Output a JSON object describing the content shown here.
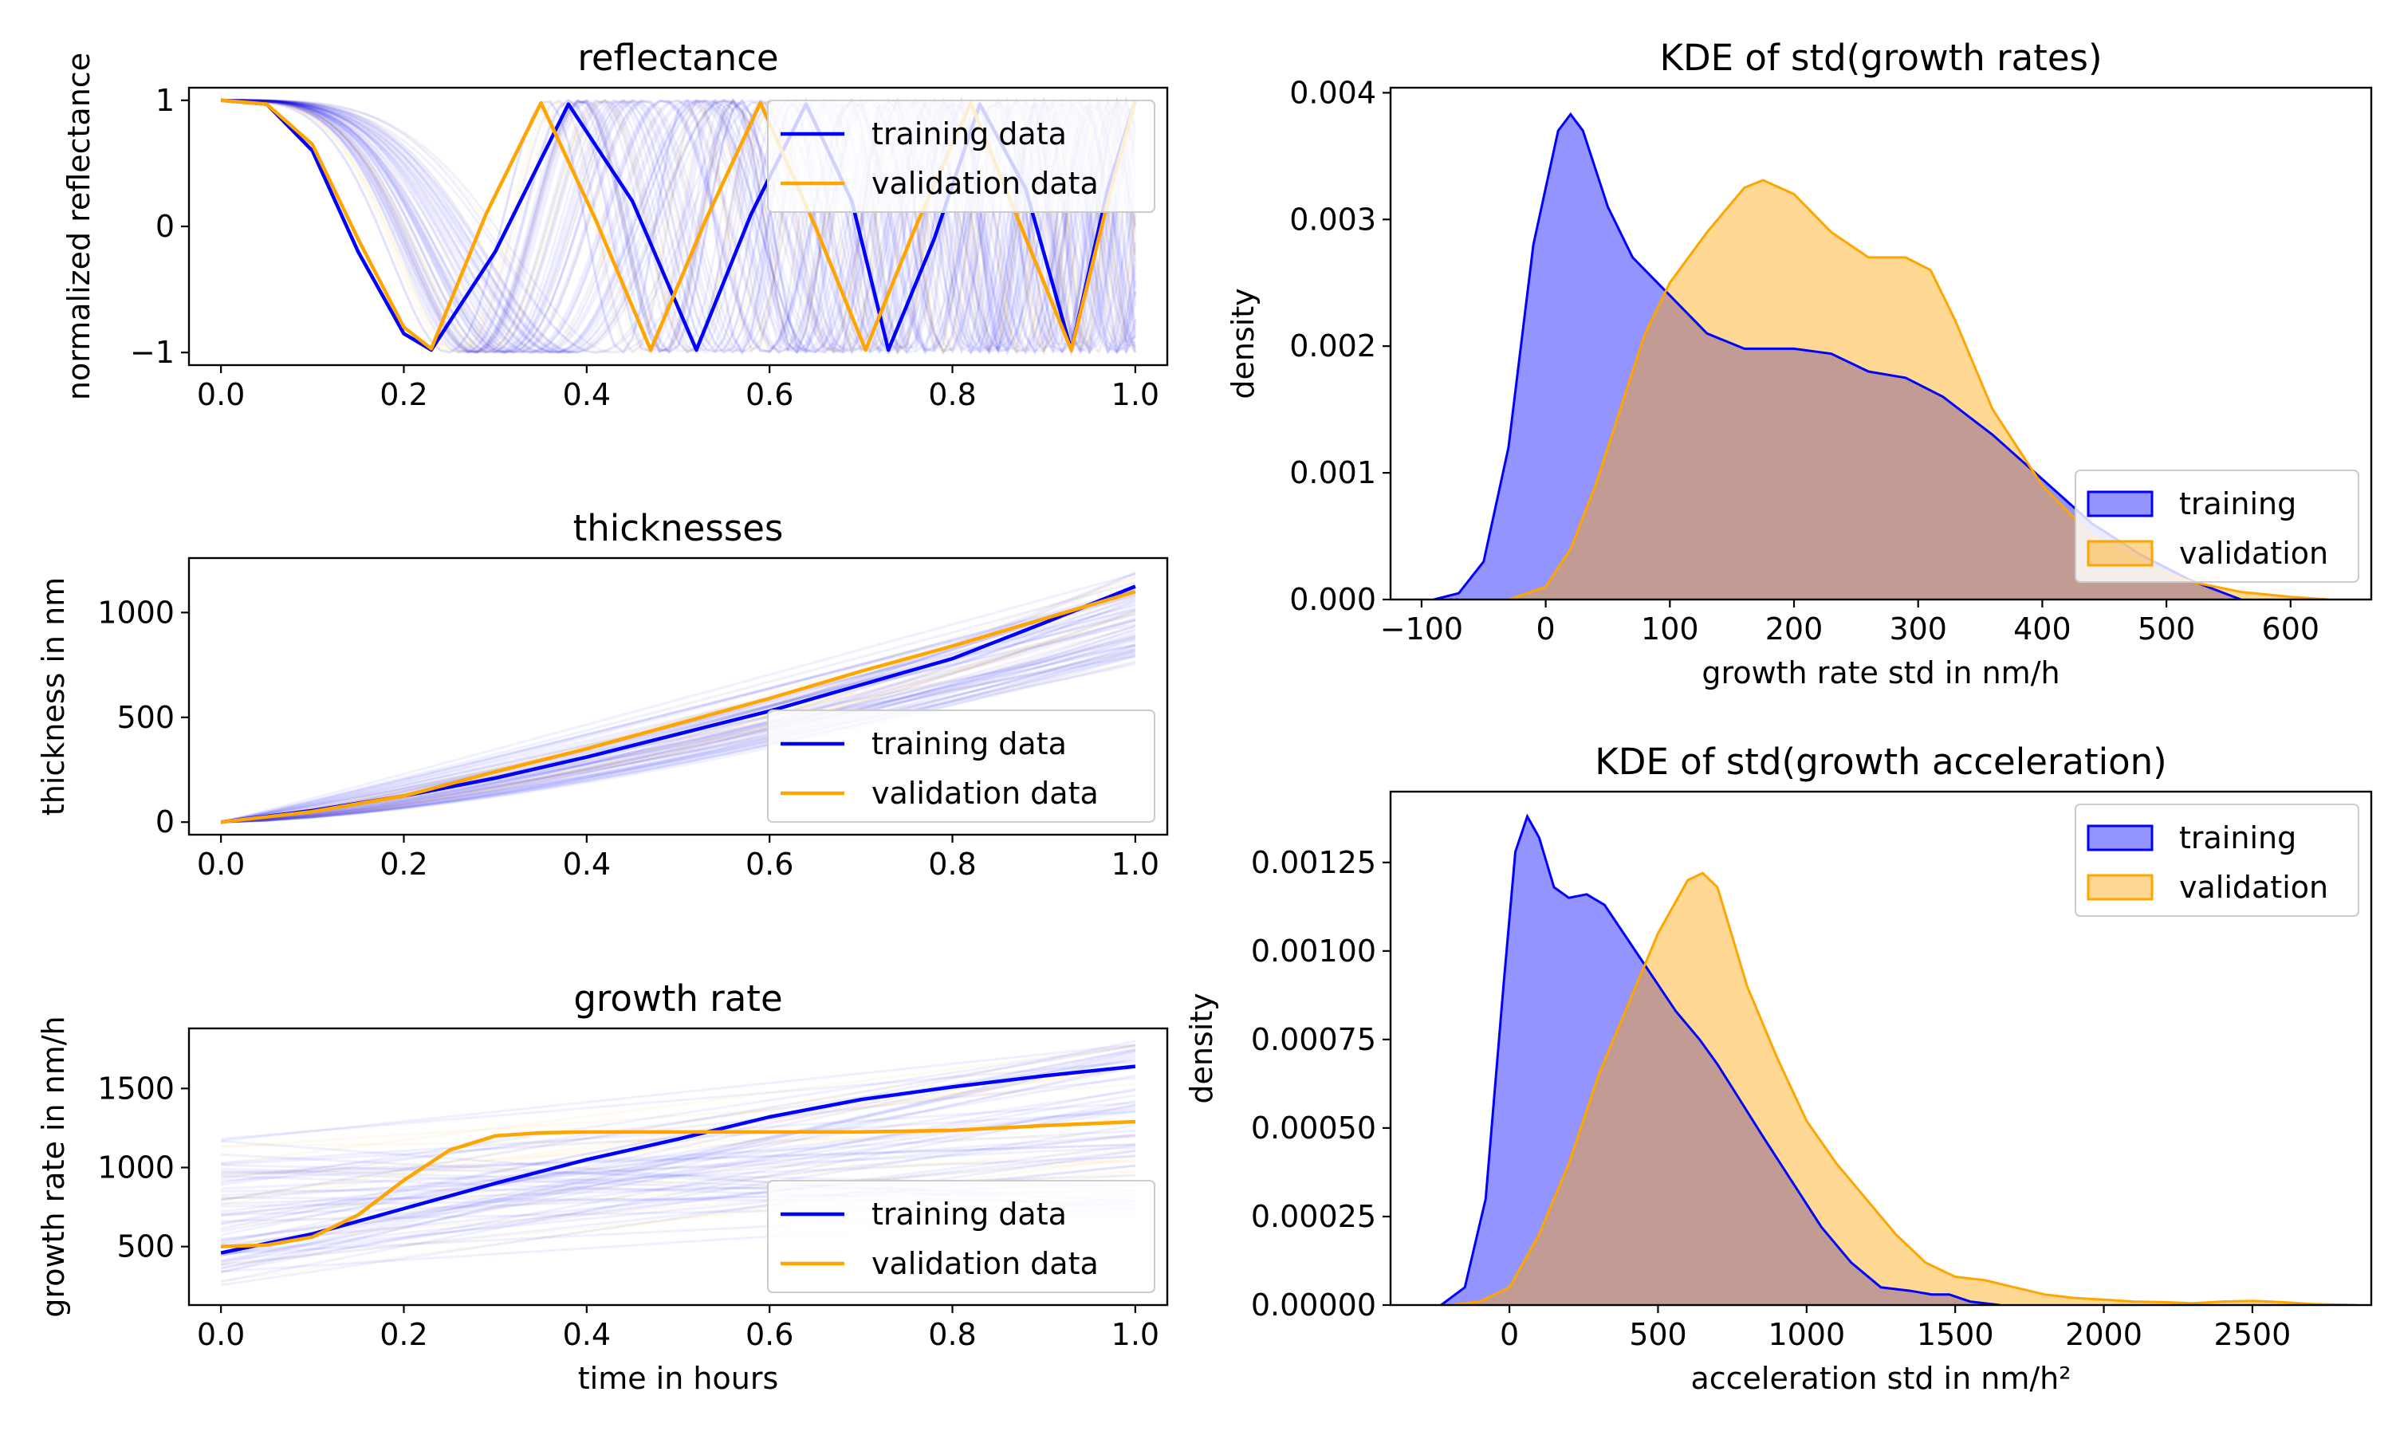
{
  "colors": {
    "training": "#0000ff",
    "validation": "#ffa500",
    "overlap": "#b99c9a"
  },
  "chart_data": [
    {
      "id": "reflectance",
      "type": "line",
      "title": "reflectance",
      "xlabel": "",
      "ylabel": "normalized reflectance",
      "xlim": [
        -0.035,
        1.035
      ],
      "ylim": [
        -1.1,
        1.1
      ],
      "xticks": [
        0.0,
        0.2,
        0.4,
        0.6,
        0.8,
        1.0
      ],
      "xtick_labels": [
        "0.0",
        "0.2",
        "0.4",
        "0.6",
        "0.8",
        "1.0"
      ],
      "yticks": [
        -1,
        0,
        1
      ],
      "ytick_labels": [
        "−1",
        "0",
        "1"
      ],
      "legend": {
        "position": "top-right",
        "entries": [
          "training data",
          "validation data"
        ]
      },
      "series": [
        {
          "name": "training data",
          "x": [
            0,
            0.05,
            0.1,
            0.15,
            0.2,
            0.23,
            0.3,
            0.38,
            0.45,
            0.52,
            0.58,
            0.64,
            0.69,
            0.73,
            0.78,
            0.83,
            0.88,
            0.93,
            0.97,
            1.0
          ],
          "y": [
            1,
            0.97,
            0.6,
            -0.2,
            -0.85,
            -0.98,
            -0.2,
            0.97,
            0.2,
            -0.98,
            0.1,
            0.97,
            0.2,
            -0.98,
            -0.1,
            0.97,
            0.3,
            -0.98,
            0.3,
            1.0
          ]
        },
        {
          "name": "validation data",
          "x": [
            0,
            0.05,
            0.1,
            0.15,
            0.2,
            0.23,
            0.29,
            0.35,
            0.41,
            0.47,
            0.53,
            0.59,
            0.65,
            0.705,
            0.76,
            0.82,
            0.875,
            0.93,
            0.97,
            1.0
          ],
          "y": [
            1,
            0.97,
            0.65,
            -0.1,
            -0.8,
            -0.97,
            0.1,
            0.98,
            0.05,
            -0.98,
            0.05,
            0.98,
            0.0,
            -0.98,
            0.0,
            0.98,
            0.0,
            -0.98,
            0.2,
            1.0
          ]
        }
      ]
    },
    {
      "id": "thicknesses",
      "type": "line",
      "title": "thicknesses",
      "xlabel": "",
      "ylabel": "thickness in nm",
      "xlim": [
        -0.035,
        1.035
      ],
      "ylim": [
        -60,
        1260
      ],
      "xticks": [
        0.0,
        0.2,
        0.4,
        0.6,
        0.8,
        1.0
      ],
      "xtick_labels": [
        "0.0",
        "0.2",
        "0.4",
        "0.6",
        "0.8",
        "1.0"
      ],
      "yticks": [
        0,
        500,
        1000
      ],
      "ytick_labels": [
        "0",
        "500",
        "1000"
      ],
      "legend": {
        "position": "lower-right",
        "entries": [
          "training data",
          "validation data"
        ]
      },
      "series": [
        {
          "name": "training data",
          "x": [
            0,
            0.1,
            0.2,
            0.3,
            0.4,
            0.5,
            0.6,
            0.7,
            0.8,
            0.9,
            1.0
          ],
          "y": [
            0,
            55,
            125,
            210,
            310,
            420,
            530,
            655,
            780,
            950,
            1125
          ]
        },
        {
          "name": "validation data",
          "x": [
            0,
            0.1,
            0.2,
            0.3,
            0.4,
            0.5,
            0.6,
            0.7,
            0.8,
            0.9,
            1.0
          ],
          "y": [
            0,
            50,
            125,
            240,
            350,
            470,
            590,
            720,
            840,
            970,
            1100
          ]
        }
      ]
    },
    {
      "id": "growth-rate",
      "type": "line",
      "title": "growth rate",
      "xlabel": "time in hours",
      "ylabel": "growth rate in nm/h",
      "xlim": [
        -0.035,
        1.035
      ],
      "ylim": [
        130,
        1880
      ],
      "xticks": [
        0.0,
        0.2,
        0.4,
        0.6,
        0.8,
        1.0
      ],
      "xtick_labels": [
        "0.0",
        "0.2",
        "0.4",
        "0.6",
        "0.8",
        "1.0"
      ],
      "yticks": [
        500,
        1000,
        1500
      ],
      "ytick_labels": [
        "500",
        "1000",
        "1500"
      ],
      "legend": {
        "position": "lower-right",
        "entries": [
          "training data",
          "validation data"
        ]
      },
      "series": [
        {
          "name": "training data",
          "x": [
            0,
            0.1,
            0.2,
            0.3,
            0.4,
            0.5,
            0.6,
            0.7,
            0.8,
            0.9,
            1.0
          ],
          "y": [
            460,
            580,
            740,
            900,
            1050,
            1180,
            1320,
            1430,
            1510,
            1580,
            1640
          ]
        },
        {
          "name": "validation data",
          "x": [
            0,
            0.05,
            0.1,
            0.15,
            0.2,
            0.25,
            0.3,
            0.35,
            0.4,
            0.5,
            0.6,
            0.7,
            0.8,
            0.9,
            1.0
          ],
          "y": [
            500,
            510,
            560,
            700,
            920,
            1110,
            1200,
            1220,
            1225,
            1225,
            1225,
            1225,
            1235,
            1265,
            1290
          ]
        }
      ]
    },
    {
      "id": "kde-growth-rates",
      "type": "area",
      "title": "KDE of std(growth rates)",
      "xlabel": "growth rate std in nm/h",
      "ylabel": "density",
      "xlim": [
        -125,
        665
      ],
      "ylim": [
        0,
        0.00404
      ],
      "xticks": [
        -100,
        0,
        100,
        200,
        300,
        400,
        500,
        600
      ],
      "xtick_labels": [
        "−100",
        "0",
        "100",
        "200",
        "300",
        "400",
        "500",
        "600"
      ],
      "yticks": [
        0,
        0.001,
        0.002,
        0.003,
        0.004
      ],
      "ytick_labels": [
        "0.000",
        "0.001",
        "0.002",
        "0.003",
        "0.004"
      ],
      "legend": {
        "position": "right",
        "entries": [
          "training",
          "validation"
        ]
      },
      "series": [
        {
          "name": "training",
          "x": [
            -90,
            -70,
            -50,
            -30,
            -10,
            10,
            20,
            30,
            50,
            70,
            100,
            130,
            160,
            200,
            230,
            260,
            290,
            320,
            360,
            400,
            440,
            480,
            520,
            560
          ],
          "y": [
            0,
            5e-05,
            0.0003,
            0.0012,
            0.0028,
            0.0037,
            0.00383,
            0.0037,
            0.0031,
            0.0027,
            0.0024,
            0.0021,
            0.00198,
            0.00198,
            0.00194,
            0.0018,
            0.00175,
            0.0016,
            0.0013,
            0.00095,
            0.0006,
            0.00035,
            0.00015,
            0.0
          ]
        },
        {
          "name": "validation",
          "x": [
            -30,
            0,
            20,
            40,
            60,
            80,
            100,
            130,
            160,
            175,
            200,
            230,
            260,
            290,
            310,
            330,
            360,
            400,
            440,
            480,
            520,
            560,
            600,
            630
          ],
          "y": [
            0,
            0.0001,
            0.0004,
            0.0009,
            0.0015,
            0.0021,
            0.0025,
            0.0029,
            0.00325,
            0.00331,
            0.0032,
            0.0029,
            0.0027,
            0.0027,
            0.0026,
            0.0022,
            0.0015,
            0.0009,
            0.0005,
            0.00028,
            0.00014,
            6e-05,
            2e-05,
            0.0
          ]
        }
      ]
    },
    {
      "id": "kde-growth-acceleration",
      "type": "area",
      "title": "KDE of std(growth acceleration)",
      "xlabel": "acceleration std in nm/h²",
      "ylabel": "density",
      "xlim": [
        -400,
        2900
      ],
      "ylim": [
        0,
        0.00145
      ],
      "xticks": [
        0,
        500,
        1000,
        1500,
        2000,
        2500
      ],
      "xtick_labels": [
        "0",
        "500",
        "1000",
        "1500",
        "2000",
        "2500"
      ],
      "yticks": [
        0,
        0.00025,
        0.0005,
        0.00075,
        0.001,
        0.00125
      ],
      "ytick_labels": [
        "0.00000",
        "0.00025",
        "0.00050",
        "0.00075",
        "0.00100",
        "0.00125"
      ],
      "legend": {
        "position": "top-right",
        "entries": [
          "training",
          "validation"
        ]
      },
      "series": [
        {
          "name": "training",
          "x": [
            -230,
            -150,
            -80,
            -20,
            20,
            60,
            100,
            150,
            200,
            260,
            320,
            400,
            480,
            560,
            640,
            700,
            760,
            850,
            950,
            1050,
            1150,
            1250,
            1350,
            1420,
            1480,
            1550,
            1650
          ],
          "y": [
            0,
            5e-05,
            0.0003,
            0.0009,
            0.00128,
            0.00138,
            0.00132,
            0.00118,
            0.00115,
            0.00116,
            0.00113,
            0.00103,
            0.00093,
            0.00083,
            0.00075,
            0.00068,
            0.0006,
            0.00048,
            0.00035,
            0.00022,
            0.00012,
            5e-05,
            4e-05,
            3e-05,
            3e-05,
            1e-05,
            0.0
          ]
        },
        {
          "name": "validation",
          "x": [
            -200,
            -100,
            0,
            100,
            200,
            300,
            400,
            500,
            600,
            650,
            700,
            800,
            900,
            1000,
            1100,
            1200,
            1300,
            1400,
            1500,
            1600,
            1700,
            1800,
            1900,
            2000,
            2100,
            2200,
            2300,
            2400,
            2500,
            2600,
            2700,
            2850
          ],
          "y": [
            0,
            1e-05,
            5e-05,
            0.0002,
            0.0004,
            0.00065,
            0.00085,
            0.00105,
            0.0012,
            0.00122,
            0.00118,
            0.0009,
            0.0007,
            0.00052,
            0.0004,
            0.0003,
            0.0002,
            0.00012,
            8e-05,
            7e-05,
            5e-05,
            3e-05,
            2e-05,
            1.5e-05,
            1e-05,
            8e-06,
            5e-06,
            1e-05,
            1.2e-05,
            8e-06,
            3e-06,
            0.0
          ]
        }
      ]
    }
  ]
}
